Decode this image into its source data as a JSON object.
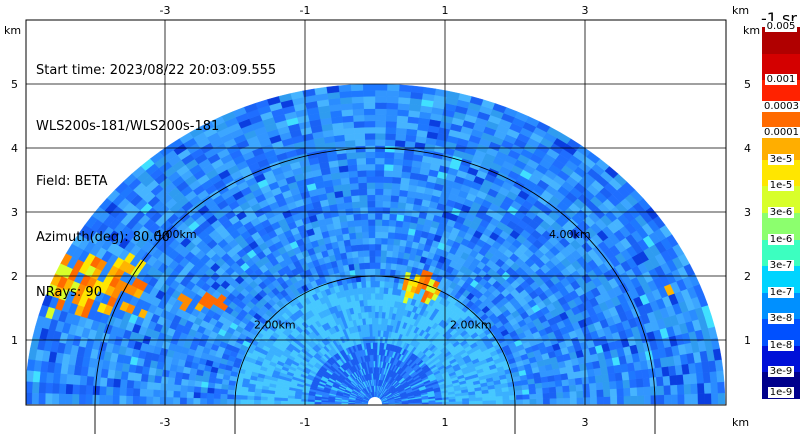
{
  "header": {
    "start_time": "Start time: 2023/08/22 20:03:09.555",
    "instrument": "WLS200s-181/WLS200s-181",
    "field": "Field: BETA",
    "azimuth": "Azimuth(deg): 80.00",
    "nrays": "NRays: 90"
  },
  "axes": {
    "x_unit": "km",
    "y_unit": "km",
    "x_ticks": [
      "-3",
      "-1",
      "1",
      "3"
    ],
    "y_ticks": [
      "1",
      "2",
      "3",
      "4",
      "5"
    ]
  },
  "colorbar": {
    "title": "-1 sr",
    "labels": [
      "0.005",
      "0.001",
      "0.0003",
      "0.0001",
      "3e-5",
      "1e-5",
      "3e-6",
      "1e-6",
      "3e-7",
      "1e-7",
      "3e-8",
      "1e-8",
      "3e-9",
      "1e-9"
    ],
    "colors": [
      "#b00000",
      "#d40000",
      "#ff2200",
      "#ff6a00",
      "#ffae00",
      "#ffe600",
      "#d8ff2a",
      "#8cff6e",
      "#3cffc0",
      "#00d4ff",
      "#0090ff",
      "#0050ff",
      "#0010d8",
      "#00008c"
    ]
  },
  "chart_data": {
    "type": "heatmap",
    "subtype": "RHI backscatter scan",
    "field": "BETA",
    "azimuth_deg": 80.0,
    "n_rays": 90,
    "x_range_km": [
      -5.0,
      5.0
    ],
    "y_range_km": [
      0,
      5.5
    ],
    "max_range_km": 5.0,
    "range_rings_km": [
      2.0,
      4.0
    ],
    "ring_labels": [
      "2.00km",
      "4.00km"
    ],
    "grid": true,
    "colorbar_levels": [
      "1e-9",
      "3e-9",
      "1e-8",
      "3e-8",
      "1e-7",
      "3e-7",
      "1e-6",
      "3e-6",
      "1e-5",
      "3e-5",
      "0.0001",
      "0.0003",
      "0.001",
      "0.005"
    ],
    "features": [
      {
        "desc": "high backscatter streak",
        "x_km": [
          -4.7,
          -3.3
        ],
        "y_km": [
          1.4,
          2.3
        ]
      },
      {
        "desc": "high backscatter patch",
        "x_km": [
          -2.8,
          -2.1
        ],
        "y_km": [
          1.5,
          1.7
        ]
      },
      {
        "desc": "high backscatter patch",
        "x_km": [
          0.4,
          0.9
        ],
        "y_km": [
          1.6,
          2.05
        ]
      },
      {
        "desc": "high backscatter patch",
        "x_km": [
          4.2,
          4.3
        ],
        "y_km": [
          1.65,
          1.8
        ]
      }
    ]
  }
}
